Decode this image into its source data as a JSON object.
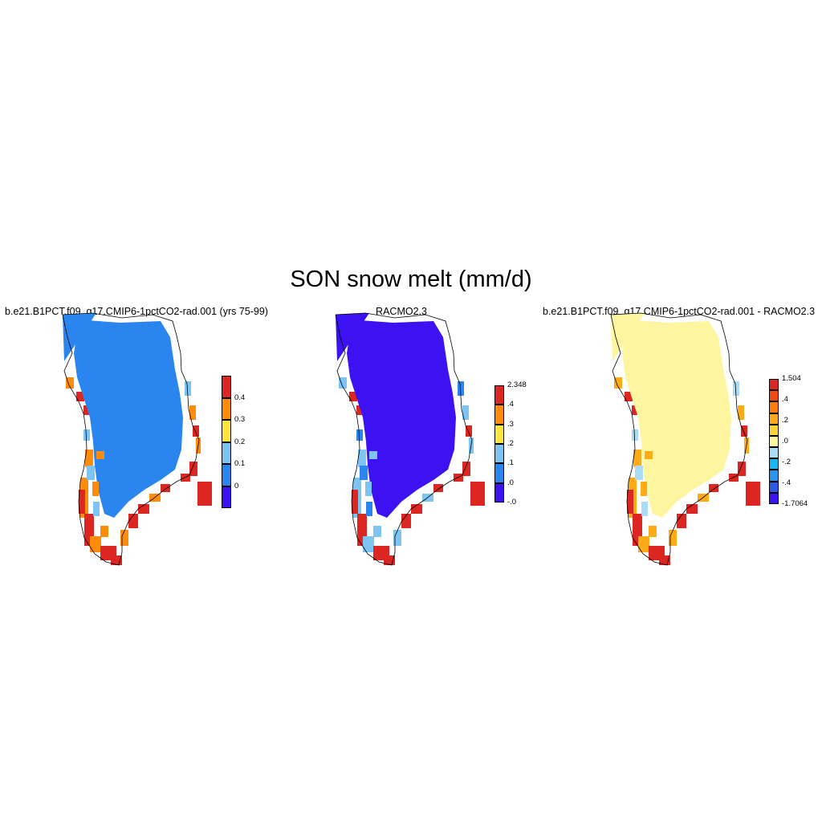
{
  "figure": {
    "title": "SON snow melt (mm/d)"
  },
  "panels": [
    {
      "title": "b.e21.B1PCT.f09_g17.CMIP6-1pctCO2-rad.001 (yrs 75-99)",
      "fill_color": "#2a85ef",
      "colorbar": {
        "labels": [
          "0",
          "0.1",
          "0.2",
          "0.3",
          "0.4"
        ],
        "colors": [
          "#3c12f2",
          "#2a85ef",
          "#7ec4f2",
          "#fde540",
          "#fd8c0c",
          "#dc2622"
        ]
      }
    },
    {
      "title": "RACMO2.3",
      "fill_color": "#3c12f2",
      "colorbar": {
        "labels": [
          "-.0",
          ".0",
          ".1",
          ".2",
          ".3",
          ".4",
          "2.348"
        ],
        "colors": [
          "#3c12f2",
          "#2a85ef",
          "#7ec4f2",
          "#fde540",
          "#fd8c0c",
          "#dc2622"
        ]
      }
    },
    {
      "title": "b.e21.B1PCT.f09_g17.CMIP6-1pctCO2-rad.001 - RACMO2.3",
      "fill_color": "#fdf5a0",
      "colorbar": {
        "labels": [
          "-1.7064",
          "-.4",
          "-.2",
          ".0",
          ".2",
          ".4",
          "1.504"
        ],
        "colors": [
          "#3c12f2",
          "#2a5ce8",
          "#2a94f0",
          "#18b6f4",
          "#aadcf5",
          "#fdf5a0",
          "#fdd435",
          "#fdac18",
          "#fd7d0c",
          "#f24a10",
          "#dc2622"
        ]
      }
    }
  ]
}
